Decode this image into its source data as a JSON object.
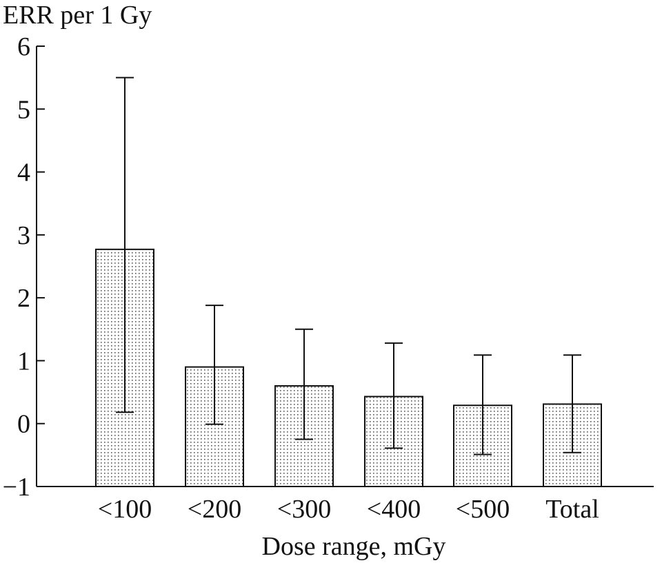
{
  "chart_data": {
    "type": "bar",
    "title": "",
    "ylabel": "ERR per 1 Gy",
    "xlabel": "Dose range, mGy",
    "ylim": [
      -1,
      6
    ],
    "yticks": [
      "6",
      "5",
      "4",
      "3",
      "2",
      "1",
      "0",
      "−1"
    ],
    "categories": [
      "<100",
      "<200",
      "<300",
      "<400",
      "<500",
      "Total"
    ],
    "values": [
      2.77,
      0.9,
      0.6,
      0.43,
      0.29,
      0.31
    ],
    "error_low": [
      0.18,
      -0.01,
      -0.25,
      -0.39,
      -0.49,
      -0.46
    ],
    "error_high": [
      5.5,
      1.88,
      1.5,
      1.28,
      1.09,
      1.09
    ],
    "grid": false,
    "bar_fill": "dotted gray pattern"
  },
  "colors": {
    "axis": "#111111",
    "bar_dots": "#555555",
    "background": "#ffffff"
  }
}
